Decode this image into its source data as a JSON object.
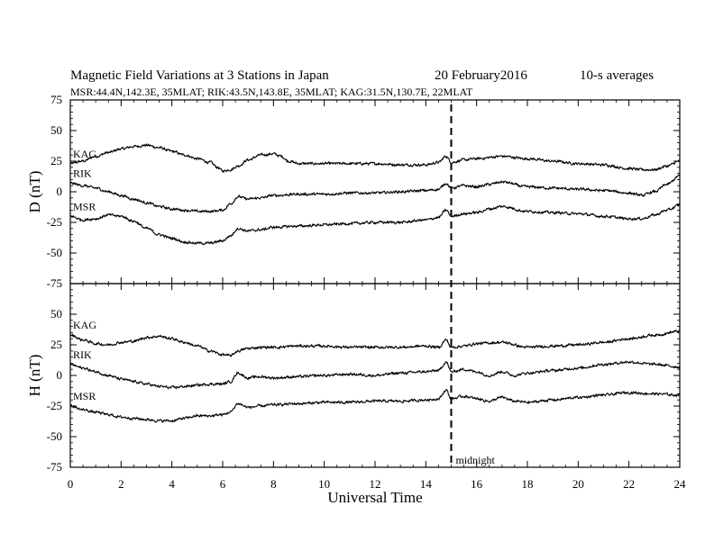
{
  "chart_data": {
    "type": "line",
    "title": "Magnetic Field Variations at 3 Stations in Japan",
    "date": "20 February2016",
    "averaging": "10-s averages",
    "subtitle": "MSR:44.4N,142.3E, 35MLAT;  RIK:43.5N,143.8E, 35MLAT;  KAG:31.5N,130.7E, 22MLAT",
    "xlabel": "Universal Time",
    "xlim": [
      0,
      24
    ],
    "xticks": [
      0,
      2,
      4,
      6,
      8,
      10,
      12,
      14,
      16,
      18,
      20,
      22,
      24
    ],
    "annotation": {
      "x": 15,
      "label": "midnight"
    },
    "panels": [
      {
        "ylabel": "D (nT)",
        "ylim": [
          -75,
          75
        ],
        "yticks": [
          -75,
          -50,
          -25,
          0,
          25,
          50,
          75
        ],
        "series": [
          {
            "name": "KAG",
            "x": [
              0,
              0.5,
              1,
              1.5,
              2,
              2.5,
              3,
              3.5,
              4,
              4.5,
              5,
              5.5,
              5.8,
              6,
              6.3,
              6.6,
              7,
              7.5,
              8,
              8.3,
              8.6,
              9,
              10,
              11,
              12,
              13,
              14,
              14.5,
              14.8,
              15,
              15.5,
              16,
              17,
              18,
              19,
              20,
              21,
              22,
              22.5,
              23,
              23.5,
              24
            ],
            "values": [
              23,
              25,
              29,
              32,
              35,
              37,
              38,
              36,
              33,
              30,
              27,
              24,
              20,
              17,
              18,
              21,
              26,
              30,
              31,
              29,
              25,
              23,
              23,
              23,
              23,
              22,
              22,
              24,
              29,
              24,
              26,
              27,
              29,
              27,
              25,
              23,
              22,
              19,
              18,
              18,
              21,
              25
            ]
          },
          {
            "name": "RIK",
            "x": [
              0,
              0.5,
              1,
              1.5,
              2,
              2.5,
              3,
              3.5,
              4,
              4.5,
              5,
              5.5,
              6,
              6.3,
              6.6,
              7,
              7.5,
              8,
              9,
              10,
              11,
              12,
              13,
              14,
              14.5,
              14.8,
              15,
              15.5,
              16,
              16.5,
              17,
              18,
              19,
              20,
              21,
              22,
              22.5,
              23,
              23.5,
              24
            ],
            "values": [
              7,
              5,
              3,
              0,
              -3,
              -6,
              -9,
              -12,
              -14,
              -15,
              -16,
              -16,
              -15,
              -10,
              -4,
              -6,
              -5,
              -3,
              -2,
              -2,
              -1,
              -1,
              0,
              1,
              2,
              7,
              3,
              5,
              4,
              6,
              8,
              4,
              3,
              2,
              1,
              -1,
              -3,
              0,
              6,
              13
            ]
          },
          {
            "name": "MSR",
            "x": [
              0,
              0.5,
              1,
              1.5,
              2,
              2.5,
              3,
              3.5,
              4,
              4.5,
              5,
              5.5,
              6,
              6.3,
              6.6,
              7,
              7.5,
              8,
              9,
              10,
              11,
              12,
              13,
              14,
              14.5,
              14.8,
              15,
              15.5,
              16,
              16.5,
              17,
              18,
              19,
              20,
              21,
              22,
              22.5,
              23,
              23.5,
              24
            ],
            "values": [
              -20,
              -23,
              -22,
              -19,
              -20,
              -24,
              -30,
              -35,
              -38,
              -41,
              -42,
              -42,
              -40,
              -36,
              -30,
              -32,
              -31,
              -29,
              -28,
              -27,
              -26,
              -25,
              -25,
              -23,
              -21,
              -15,
              -20,
              -18,
              -17,
              -14,
              -12,
              -16,
              -17,
              -18,
              -20,
              -22,
              -22,
              -19,
              -15,
              -11
            ]
          }
        ]
      },
      {
        "ylabel": "H (nT)",
        "ylim": [
          -75,
          75
        ],
        "yticks": [
          -75,
          -50,
          -25,
          0,
          25,
          50,
          75
        ],
        "series": [
          {
            "name": "KAG",
            "x": [
              0,
              0.5,
              1,
              1.5,
              2,
              2.5,
              3,
              3.5,
              4,
              4.5,
              5,
              5.5,
              6,
              6.3,
              6.6,
              7,
              7.5,
              8,
              9,
              10,
              11,
              12,
              13,
              14,
              14.5,
              14.8,
              15,
              15.5,
              16,
              17,
              18,
              19,
              20,
              21,
              22,
              23,
              24
            ],
            "values": [
              33,
              29,
              26,
              25,
              27,
              28,
              31,
              32,
              30,
              27,
              24,
              20,
              17,
              16,
              20,
              22,
              23,
              23,
              24,
              24,
              23,
              23,
              23,
              24,
              23,
              29,
              23,
              24,
              26,
              27,
              23,
              24,
              25,
              27,
              30,
              33,
              36
            ]
          },
          {
            "name": "RIK",
            "x": [
              0,
              0.5,
              1,
              1.5,
              2,
              2.5,
              3,
              3.5,
              4,
              4.5,
              5,
              5.5,
              6,
              6.3,
              6.6,
              7,
              7.5,
              8,
              9,
              10,
              11,
              12,
              13,
              14,
              14.5,
              14.8,
              15,
              15.5,
              16,
              16.5,
              17,
              17.5,
              18,
              19,
              20,
              21,
              22,
              23,
              24
            ],
            "values": [
              9,
              6,
              3,
              0,
              -3,
              -5,
              -7,
              -9,
              -10,
              -9,
              -8,
              -7,
              -7,
              -5,
              2,
              -2,
              -1,
              -2,
              -1,
              0,
              1,
              0,
              2,
              3,
              4,
              11,
              3,
              5,
              3,
              0,
              3,
              0,
              2,
              4,
              6,
              9,
              11,
              9,
              7
            ]
          },
          {
            "name": "MSR",
            "x": [
              0,
              0.5,
              1,
              1.5,
              2,
              2.5,
              3,
              3.5,
              4,
              4.5,
              5,
              5.5,
              6,
              6.3,
              6.6,
              7,
              7.5,
              8,
              9,
              10,
              11,
              12,
              13,
              14,
              14.5,
              14.8,
              15,
              15.5,
              16,
              16.5,
              17,
              17.5,
              18,
              19,
              20,
              21,
              22,
              23,
              24
            ],
            "values": [
              -25,
              -28,
              -30,
              -32,
              -34,
              -35,
              -36,
              -37,
              -37,
              -35,
              -33,
              -33,
              -32,
              -30,
              -23,
              -26,
              -25,
              -24,
              -23,
              -22,
              -22,
              -21,
              -21,
              -20,
              -19,
              -12,
              -19,
              -17,
              -19,
              -21,
              -18,
              -21,
              -22,
              -20,
              -18,
              -16,
              -14,
              -15,
              -16
            ]
          }
        ]
      }
    ]
  }
}
